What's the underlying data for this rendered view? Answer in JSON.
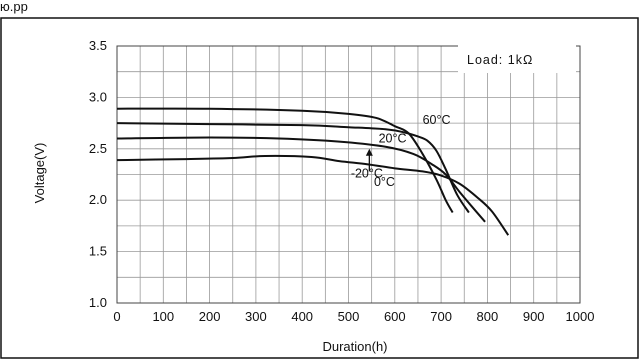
{
  "chart_data": {
    "type": "line",
    "partial_title": "ю.рр",
    "xlabel": "Duration(h)",
    "ylabel": "Voltage(V)",
    "xlim": [
      0,
      1000
    ],
    "ylim": [
      1.0,
      3.5
    ],
    "x_ticks": [
      "0",
      "100",
      "200",
      "300",
      "400",
      "500",
      "600",
      "700",
      "800",
      "900",
      "1000"
    ],
    "y_ticks": [
      "1.0",
      "1.5",
      "2.0",
      "2.5",
      "3.0",
      "3.5"
    ],
    "grid": true,
    "load_label": "Load: 1kΩ",
    "series": [
      {
        "name": "60°C",
        "color": "#111111",
        "points": [
          [
            0,
            2.89
          ],
          [
            200,
            2.89
          ],
          [
            400,
            2.87
          ],
          [
            500,
            2.84
          ],
          [
            560,
            2.8
          ],
          [
            600,
            2.72
          ],
          [
            630,
            2.65
          ],
          [
            660,
            2.45
          ],
          [
            690,
            2.2
          ],
          [
            710,
            2.0
          ],
          [
            725,
            1.88
          ]
        ]
      },
      {
        "name": "20°C",
        "color": "#111111",
        "points": [
          [
            0,
            2.75
          ],
          [
            200,
            2.74
          ],
          [
            400,
            2.73
          ],
          [
            500,
            2.71
          ],
          [
            580,
            2.69
          ],
          [
            620,
            2.66
          ],
          [
            650,
            2.62
          ],
          [
            670,
            2.58
          ],
          [
            690,
            2.48
          ],
          [
            710,
            2.3
          ],
          [
            735,
            2.05
          ],
          [
            760,
            1.88
          ]
        ]
      },
      {
        "name": "0°C",
        "color": "#111111",
        "points": [
          [
            0,
            2.6
          ],
          [
            200,
            2.61
          ],
          [
            350,
            2.6
          ],
          [
            480,
            2.57
          ],
          [
            580,
            2.52
          ],
          [
            640,
            2.45
          ],
          [
            680,
            2.35
          ],
          [
            710,
            2.25
          ],
          [
            740,
            2.08
          ],
          [
            770,
            1.92
          ],
          [
            795,
            1.79
          ]
        ]
      },
      {
        "name": "-20°C",
        "color": "#111111",
        "points": [
          [
            0,
            2.39
          ],
          [
            150,
            2.4
          ],
          [
            250,
            2.41
          ],
          [
            320,
            2.43
          ],
          [
            420,
            2.42
          ],
          [
            480,
            2.38
          ],
          [
            540,
            2.35
          ],
          [
            600,
            2.31
          ],
          [
            660,
            2.28
          ],
          [
            700,
            2.24
          ],
          [
            740,
            2.16
          ],
          [
            780,
            2.02
          ],
          [
            810,
            1.89
          ],
          [
            845,
            1.66
          ]
        ]
      }
    ],
    "curve_labels": [
      {
        "text": "60°C",
        "x": 660,
        "y": 2.74
      },
      {
        "text": "20°C",
        "x": 565,
        "y": 2.56
      },
      {
        "text": "-20°C",
        "x": 505,
        "y": 2.22
      },
      {
        "text": "0°C",
        "x": 555,
        "y": 2.14
      }
    ],
    "arrow": {
      "from_x": 545,
      "from_y": 2.28,
      "to_x": 545,
      "to_y": 2.5
    }
  }
}
